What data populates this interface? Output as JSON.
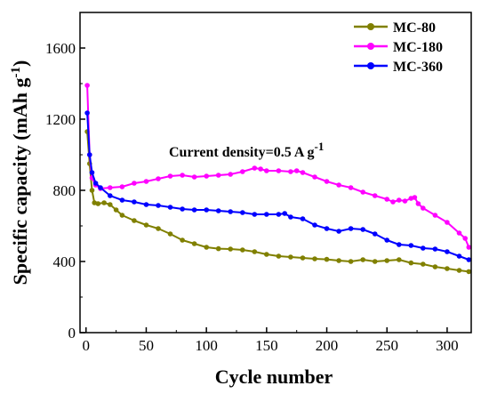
{
  "chart_data": {
    "type": "line",
    "xlabel": "Cycle number",
    "ylabel_main": "Specific capacity (mAh g",
    "ylabel_sup": "-1",
    "ylabel_tail": ")",
    "xlim": [
      -5,
      320
    ],
    "ylim": [
      0,
      1800
    ],
    "xticks": [
      0,
      50,
      100,
      150,
      200,
      250,
      300
    ],
    "xtick_labels": [
      "0",
      "50",
      "100",
      "150",
      "200",
      "250",
      "300"
    ],
    "yticks": [
      0,
      400,
      800,
      1200,
      1600
    ],
    "ytick_labels": [
      "0",
      "400",
      "800",
      "1200",
      "1600"
    ],
    "annotation": {
      "text_main": "Current density=0.5 A g",
      "text_sup": "-1"
    },
    "legend_position": "top-right",
    "series": [
      {
        "name": "MC-80",
        "color": "#808000",
        "points": [
          [
            1,
            1130
          ],
          [
            3,
            950
          ],
          [
            5,
            800
          ],
          [
            7,
            730
          ],
          [
            10,
            725
          ],
          [
            15,
            730
          ],
          [
            20,
            720
          ],
          [
            25,
            690
          ],
          [
            30,
            660
          ],
          [
            40,
            630
          ],
          [
            50,
            605
          ],
          [
            60,
            585
          ],
          [
            70,
            555
          ],
          [
            80,
            520
          ],
          [
            90,
            500
          ],
          [
            100,
            480
          ],
          [
            110,
            472
          ],
          [
            120,
            470
          ],
          [
            130,
            465
          ],
          [
            140,
            455
          ],
          [
            150,
            440
          ],
          [
            160,
            430
          ],
          [
            170,
            425
          ],
          [
            180,
            420
          ],
          [
            190,
            415
          ],
          [
            200,
            412
          ],
          [
            210,
            405
          ],
          [
            220,
            400
          ],
          [
            230,
            410
          ],
          [
            240,
            400
          ],
          [
            250,
            405
          ],
          [
            260,
            410
          ],
          [
            270,
            392
          ],
          [
            280,
            385
          ],
          [
            290,
            370
          ],
          [
            300,
            360
          ],
          [
            310,
            350
          ],
          [
            318,
            343
          ]
        ]
      },
      {
        "name": "MC-180",
        "color": "#ff00ff",
        "points": [
          [
            1,
            1390
          ],
          [
            3,
            1000
          ],
          [
            5,
            870
          ],
          [
            8,
            830
          ],
          [
            12,
            810
          ],
          [
            20,
            815
          ],
          [
            30,
            820
          ],
          [
            40,
            840
          ],
          [
            50,
            850
          ],
          [
            60,
            865
          ],
          [
            70,
            880
          ],
          [
            80,
            885
          ],
          [
            90,
            875
          ],
          [
            100,
            880
          ],
          [
            110,
            885
          ],
          [
            120,
            890
          ],
          [
            130,
            905
          ],
          [
            140,
            925
          ],
          [
            145,
            920
          ],
          [
            150,
            910
          ],
          [
            160,
            910
          ],
          [
            170,
            905
          ],
          [
            175,
            910
          ],
          [
            180,
            900
          ],
          [
            190,
            875
          ],
          [
            200,
            850
          ],
          [
            210,
            830
          ],
          [
            220,
            815
          ],
          [
            230,
            790
          ],
          [
            240,
            770
          ],
          [
            250,
            750
          ],
          [
            255,
            735
          ],
          [
            260,
            745
          ],
          [
            265,
            740
          ],
          [
            270,
            755
          ],
          [
            273,
            760
          ],
          [
            276,
            725
          ],
          [
            280,
            700
          ],
          [
            290,
            660
          ],
          [
            300,
            620
          ],
          [
            310,
            560
          ],
          [
            315,
            530
          ],
          [
            318,
            480
          ]
        ]
      },
      {
        "name": "MC-360",
        "color": "#0000ff",
        "points": [
          [
            1,
            1235
          ],
          [
            3,
            1000
          ],
          [
            5,
            900
          ],
          [
            8,
            840
          ],
          [
            12,
            815
          ],
          [
            20,
            770
          ],
          [
            30,
            745
          ],
          [
            40,
            735
          ],
          [
            50,
            720
          ],
          [
            60,
            715
          ],
          [
            70,
            705
          ],
          [
            80,
            695
          ],
          [
            90,
            690
          ],
          [
            100,
            690
          ],
          [
            110,
            685
          ],
          [
            120,
            680
          ],
          [
            130,
            675
          ],
          [
            140,
            665
          ],
          [
            150,
            665
          ],
          [
            160,
            665
          ],
          [
            165,
            670
          ],
          [
            170,
            650
          ],
          [
            180,
            640
          ],
          [
            190,
            605
          ],
          [
            200,
            585
          ],
          [
            210,
            570
          ],
          [
            220,
            585
          ],
          [
            230,
            580
          ],
          [
            240,
            555
          ],
          [
            250,
            520
          ],
          [
            260,
            495
          ],
          [
            270,
            490
          ],
          [
            280,
            475
          ],
          [
            290,
            470
          ],
          [
            300,
            455
          ],
          [
            310,
            430
          ],
          [
            318,
            410
          ]
        ]
      }
    ]
  }
}
